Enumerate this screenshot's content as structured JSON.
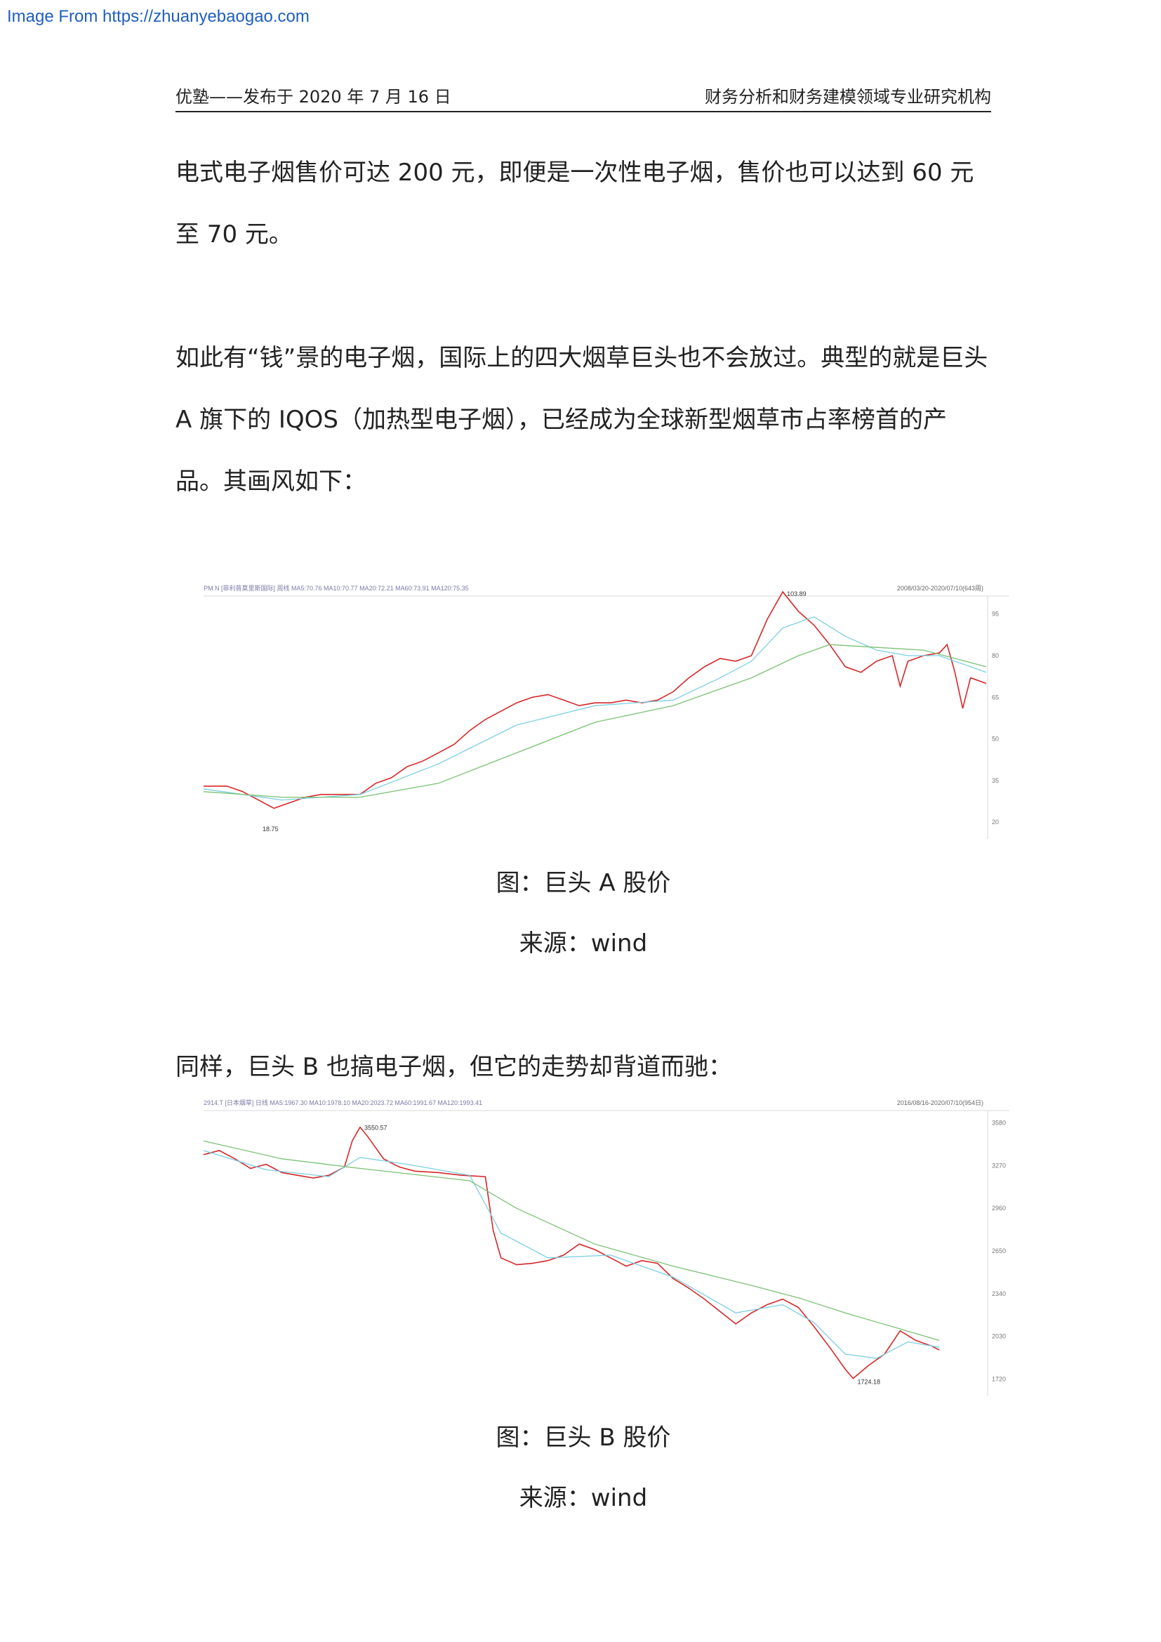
{
  "watermark": "Image From https://zhuanyebaogao.com",
  "header": {
    "left": "优塾——发布于 2020 年 7 月 16 日",
    "right": "财务分析和财务建模领域专业研究机构"
  },
  "paragraphs": [
    "电式电子烟售价可达 200 元，即便是一次性电子烟，售价也可以达到 60 元至 70 元。",
    "如此有“钱”景的电子烟，国际上的四大烟草巨头也不会放过。典型的就是巨头 A 旗下的 IQOS（加热型电子烟），已经成为全球新型烟草市占率榜首的产品。其画风如下：",
    "同样，巨头 B 也搞电子烟，但它的走势却背道而驰："
  ],
  "figures": [
    {
      "caption": "图：巨头 A 股价",
      "source": "来源：wind"
    },
    {
      "caption": "图：巨头 B 股价",
      "source": "来源：wind"
    }
  ],
  "chart_data": [
    {
      "type": "line",
      "title": "",
      "header_text": "PM.N [菲利普莫里斯国际] 周线 MA5:70.76 MA10:70.77 MA20:72.21 MA60:73.91 MA120:75.35",
      "range_label": "2008/03/20-2020/07/10(643周)",
      "y_ticks": [
        20,
        35,
        50,
        65,
        80,
        95
      ],
      "ylim": [
        16,
        101
      ],
      "annotations": [
        {
          "label": "103.89"
        },
        {
          "label": "18.75"
        }
      ],
      "series": [
        {
          "color": "#d62728",
          "points": [
            [
              0,
              33
            ],
            [
              3,
              33
            ],
            [
              5,
              31
            ],
            [
              7,
              28
            ],
            [
              9,
              25
            ],
            [
              11,
              27
            ],
            [
              13,
              29
            ],
            [
              15,
              30
            ],
            [
              17,
              30
            ],
            [
              20,
              30
            ],
            [
              22,
              34
            ],
            [
              24,
              36
            ],
            [
              26,
              40
            ],
            [
              28,
              42
            ],
            [
              30,
              45
            ],
            [
              32,
              48
            ],
            [
              34,
              53
            ],
            [
              36,
              57
            ],
            [
              38,
              60
            ],
            [
              40,
              63
            ],
            [
              42,
              65
            ],
            [
              44,
              66
            ],
            [
              46,
              64
            ],
            [
              48,
              62
            ],
            [
              50,
              63
            ],
            [
              52,
              63
            ],
            [
              54,
              64
            ],
            [
              56,
              63
            ],
            [
              58,
              64
            ],
            [
              60,
              67
            ],
            [
              62,
              72
            ],
            [
              64,
              76
            ],
            [
              66,
              79
            ],
            [
              68,
              78
            ],
            [
              70,
              80
            ],
            [
              72,
              93
            ],
            [
              74,
              103
            ],
            [
              76,
              96
            ],
            [
              78,
              91
            ],
            [
              80,
              84
            ],
            [
              82,
              76
            ],
            [
              84,
              74
            ],
            [
              86,
              78
            ],
            [
              88,
              80
            ],
            [
              89,
              69
            ],
            [
              90,
              78
            ],
            [
              92,
              80
            ],
            [
              94,
              81
            ],
            [
              95,
              84
            ],
            [
              96,
              74
            ],
            [
              97,
              61
            ],
            [
              98,
              72
            ],
            [
              100,
              70
            ]
          ]
        },
        {
          "color": "#7bcfe3",
          "points": [
            [
              0,
              32
            ],
            [
              10,
              28
            ],
            [
              20,
              30
            ],
            [
              30,
              41
            ],
            [
              40,
              55
            ],
            [
              50,
              62
            ],
            [
              60,
              64
            ],
            [
              66,
              72
            ],
            [
              70,
              78
            ],
            [
              74,
              90
            ],
            [
              78,
              94
            ],
            [
              82,
              87
            ],
            [
              86,
              82
            ],
            [
              90,
              80
            ],
            [
              94,
              80
            ],
            [
              100,
              74
            ]
          ]
        },
        {
          "color": "#7ac173",
          "points": [
            [
              0,
              31
            ],
            [
              10,
              29
            ],
            [
              20,
              29
            ],
            [
              30,
              34
            ],
            [
              40,
              45
            ],
            [
              50,
              56
            ],
            [
              60,
              62
            ],
            [
              66,
              68
            ],
            [
              70,
              72
            ],
            [
              76,
              80
            ],
            [
              80,
              84
            ],
            [
              86,
              83
            ],
            [
              92,
              82
            ],
            [
              100,
              76
            ]
          ]
        }
      ]
    },
    {
      "type": "line",
      "title": "",
      "header_text": "2914.T [日本烟草] 日线 MA5:1967.30 MA10:1978.10 MA20:2023.72 MA60:1991.67 MA120:1993.41",
      "range_label": "2016/08/16-2020/07/10(954日)",
      "y_ticks": [
        1720,
        2030,
        2340,
        2650,
        2960,
        3270,
        3580
      ],
      "ylim": [
        1640,
        3660
      ],
      "annotations": [
        {
          "label": "3550.57"
        },
        {
          "label": "1724.18"
        }
      ],
      "series": [
        {
          "color": "#d62728",
          "points": [
            [
              0,
              3350
            ],
            [
              2,
              3380
            ],
            [
              4,
              3320
            ],
            [
              6,
              3250
            ],
            [
              8,
              3280
            ],
            [
              10,
              3220
            ],
            [
              12,
              3200
            ],
            [
              14,
              3180
            ],
            [
              16,
              3200
            ],
            [
              18,
              3260
            ],
            [
              19,
              3450
            ],
            [
              20,
              3550
            ],
            [
              21,
              3480
            ],
            [
              23,
              3320
            ],
            [
              25,
              3260
            ],
            [
              27,
              3230
            ],
            [
              30,
              3220
            ],
            [
              33,
              3200
            ],
            [
              36,
              3190
            ],
            [
              37,
              2800
            ],
            [
              38,
              2600
            ],
            [
              40,
              2550
            ],
            [
              42,
              2560
            ],
            [
              44,
              2580
            ],
            [
              46,
              2620
            ],
            [
              48,
              2700
            ],
            [
              50,
              2660
            ],
            [
              52,
              2600
            ],
            [
              54,
              2540
            ],
            [
              56,
              2580
            ],
            [
              58,
              2560
            ],
            [
              60,
              2450
            ],
            [
              62,
              2380
            ],
            [
              64,
              2300
            ],
            [
              66,
              2210
            ],
            [
              68,
              2120
            ],
            [
              70,
              2200
            ],
            [
              72,
              2260
            ],
            [
              74,
              2300
            ],
            [
              76,
              2240
            ],
            [
              78,
              2100
            ],
            [
              80,
              1950
            ],
            [
              82,
              1790
            ],
            [
              83,
              1724
            ],
            [
              85,
              1820
            ],
            [
              87,
              1900
            ],
            [
              89,
              2070
            ],
            [
              91,
              2000
            ],
            [
              93,
              1960
            ],
            [
              94,
              1930
            ]
          ]
        },
        {
          "color": "#7bcfe3",
          "points": [
            [
              0,
              3380
            ],
            [
              8,
              3240
            ],
            [
              16,
              3190
            ],
            [
              20,
              3330
            ],
            [
              26,
              3280
            ],
            [
              34,
              3200
            ],
            [
              38,
              2780
            ],
            [
              44,
              2600
            ],
            [
              52,
              2620
            ],
            [
              60,
              2460
            ],
            [
              68,
              2200
            ],
            [
              74,
              2260
            ],
            [
              78,
              2130
            ],
            [
              82,
              1900
            ],
            [
              86,
              1870
            ],
            [
              90,
              1990
            ],
            [
              94,
              1950
            ]
          ]
        },
        {
          "color": "#7ac173",
          "points": [
            [
              0,
              3450
            ],
            [
              10,
              3320
            ],
            [
              20,
              3250
            ],
            [
              34,
              3160
            ],
            [
              40,
              2960
            ],
            [
              50,
              2700
            ],
            [
              60,
              2540
            ],
            [
              70,
              2400
            ],
            [
              76,
              2310
            ],
            [
              82,
              2200
            ],
            [
              88,
              2100
            ],
            [
              94,
              2000
            ]
          ]
        }
      ]
    }
  ]
}
